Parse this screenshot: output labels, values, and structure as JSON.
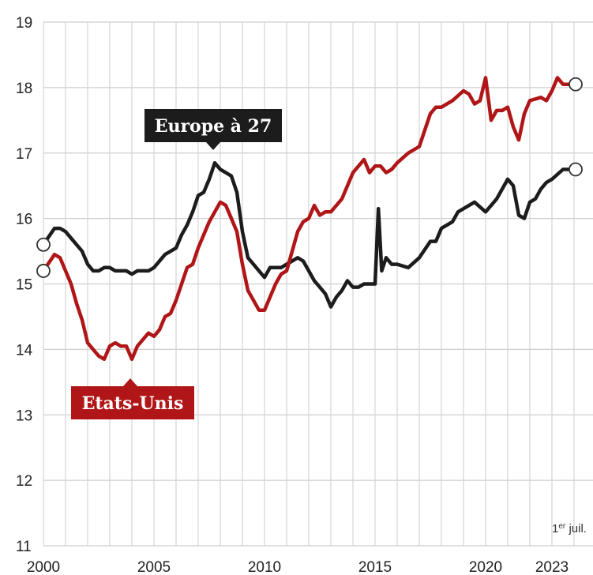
{
  "chart_data": {
    "type": "line",
    "title": "",
    "xlabel": "",
    "ylabel": "",
    "ylim": [
      11,
      19
    ],
    "xlim": [
      2000,
      2024.1
    ],
    "y_ticks": [
      "19",
      "18",
      "17",
      "16",
      "15",
      "14",
      "13",
      "12",
      "11"
    ],
    "x_ticks": [
      "2000",
      "2005",
      "2010",
      "2015",
      "2020",
      "2023"
    ],
    "annotation": {
      "prefix": "1",
      "sup": "er",
      "suffix": " juil."
    },
    "grid": true,
    "legend": "inline labels",
    "series": [
      {
        "name": "Europe à 27",
        "color": "#1c1c1c",
        "x": [
          2000.0,
          2000.3,
          2000.5,
          2000.75,
          2001.0,
          2001.25,
          2001.5,
          2001.75,
          2002.0,
          2002.25,
          2002.5,
          2002.75,
          2003.0,
          2003.25,
          2003.5,
          2003.75,
          2004.0,
          2004.25,
          2004.5,
          2004.75,
          2005.0,
          2005.25,
          2005.5,
          2005.75,
          2006.0,
          2006.25,
          2006.5,
          2006.75,
          2007.0,
          2007.25,
          2007.5,
          2007.75,
          2008.0,
          2008.25,
          2008.5,
          2008.75,
          2009.0,
          2009.25,
          2009.5,
          2009.75,
          2010.0,
          2010.25,
          2010.5,
          2010.75,
          2011.0,
          2011.25,
          2011.5,
          2011.75,
          2012.0,
          2012.25,
          2012.5,
          2012.75,
          2013.0,
          2013.25,
          2013.5,
          2013.75,
          2014.0,
          2014.25,
          2014.5,
          2014.75,
          2015.0,
          2015.15,
          2015.3,
          2015.5,
          2015.75,
          2016.0,
          2016.5,
          2017.0,
          2017.5,
          2017.75,
          2018.0,
          2018.5,
          2018.75,
          2019.0,
          2019.5,
          2020.0,
          2020.5,
          2021.0,
          2021.25,
          2021.5,
          2021.75,
          2022.0,
          2022.25,
          2022.5,
          2022.75,
          2023.0,
          2023.5,
          2024.0
        ],
        "values": [
          15.6,
          15.75,
          15.85,
          15.85,
          15.8,
          15.7,
          15.6,
          15.5,
          15.3,
          15.2,
          15.2,
          15.25,
          15.25,
          15.2,
          15.2,
          15.2,
          15.15,
          15.2,
          15.2,
          15.2,
          15.25,
          15.35,
          15.45,
          15.5,
          15.55,
          15.75,
          15.9,
          16.1,
          16.35,
          16.4,
          16.6,
          16.85,
          16.75,
          16.7,
          16.65,
          16.4,
          15.8,
          15.4,
          15.3,
          15.2,
          15.1,
          15.25,
          15.25,
          15.25,
          15.3,
          15.35,
          15.4,
          15.35,
          15.2,
          15.05,
          14.95,
          14.85,
          14.65,
          14.8,
          14.9,
          15.05,
          14.95,
          14.95,
          15.0,
          15.0,
          15.0,
          16.15,
          15.2,
          15.4,
          15.3,
          15.3,
          15.25,
          15.4,
          15.65,
          15.65,
          15.85,
          15.95,
          16.1,
          16.15,
          16.25,
          16.1,
          16.3,
          16.6,
          16.5,
          16.05,
          16.0,
          16.25,
          16.3,
          16.45,
          16.55,
          16.6,
          16.75,
          16.75
        ]
      },
      {
        "name": "Etats-Unis",
        "color": "#b01618",
        "x": [
          2000.0,
          2000.3,
          2000.5,
          2000.75,
          2001.0,
          2001.25,
          2001.5,
          2001.75,
          2002.0,
          2002.25,
          2002.5,
          2002.75,
          2003.0,
          2003.25,
          2003.5,
          2003.75,
          2004.0,
          2004.25,
          2004.5,
          2004.75,
          2005.0,
          2005.25,
          2005.5,
          2005.75,
          2006.0,
          2006.25,
          2006.5,
          2006.75,
          2007.0,
          2007.25,
          2007.5,
          2007.75,
          2008.0,
          2008.25,
          2008.5,
          2008.75,
          2009.0,
          2009.25,
          2009.5,
          2009.75,
          2010.0,
          2010.25,
          2010.5,
          2010.75,
          2011.0,
          2011.25,
          2011.5,
          2011.75,
          2012.0,
          2012.25,
          2012.5,
          2012.75,
          2013.0,
          2013.25,
          2013.5,
          2013.75,
          2014.0,
          2014.25,
          2014.5,
          2014.75,
          2015.0,
          2015.25,
          2015.5,
          2015.75,
          2016.0,
          2016.5,
          2017.0,
          2017.5,
          2017.75,
          2018.0,
          2018.5,
          2019.0,
          2019.25,
          2019.5,
          2019.75,
          2020.0,
          2020.25,
          2020.5,
          2020.75,
          2021.0,
          2021.25,
          2021.5,
          2021.75,
          2022.0,
          2022.5,
          2022.75,
          2023.0,
          2023.25,
          2023.5,
          2024.0
        ],
        "values": [
          15.2,
          15.35,
          15.45,
          15.4,
          15.2,
          15.0,
          14.7,
          14.45,
          14.1,
          14.0,
          13.9,
          13.85,
          14.05,
          14.1,
          14.05,
          14.05,
          13.85,
          14.05,
          14.15,
          14.25,
          14.2,
          14.3,
          14.5,
          14.55,
          14.75,
          15.0,
          15.25,
          15.3,
          15.55,
          15.75,
          15.95,
          16.1,
          16.25,
          16.2,
          16.0,
          15.8,
          15.3,
          14.9,
          14.75,
          14.6,
          14.6,
          14.8,
          15.0,
          15.15,
          15.2,
          15.5,
          15.8,
          15.95,
          16.0,
          16.2,
          16.05,
          16.1,
          16.1,
          16.2,
          16.3,
          16.5,
          16.7,
          16.8,
          16.9,
          16.7,
          16.8,
          16.8,
          16.7,
          16.75,
          16.85,
          17.0,
          17.1,
          17.6,
          17.7,
          17.7,
          17.8,
          17.95,
          17.9,
          17.75,
          17.8,
          18.15,
          17.5,
          17.65,
          17.65,
          17.7,
          17.4,
          17.2,
          17.6,
          17.8,
          17.85,
          17.8,
          17.95,
          18.15,
          18.05,
          18.05
        ]
      }
    ],
    "labels": [
      {
        "text": "Europe à 27",
        "series": 0
      },
      {
        "text": "Etats-Unis",
        "series": 1
      }
    ]
  }
}
